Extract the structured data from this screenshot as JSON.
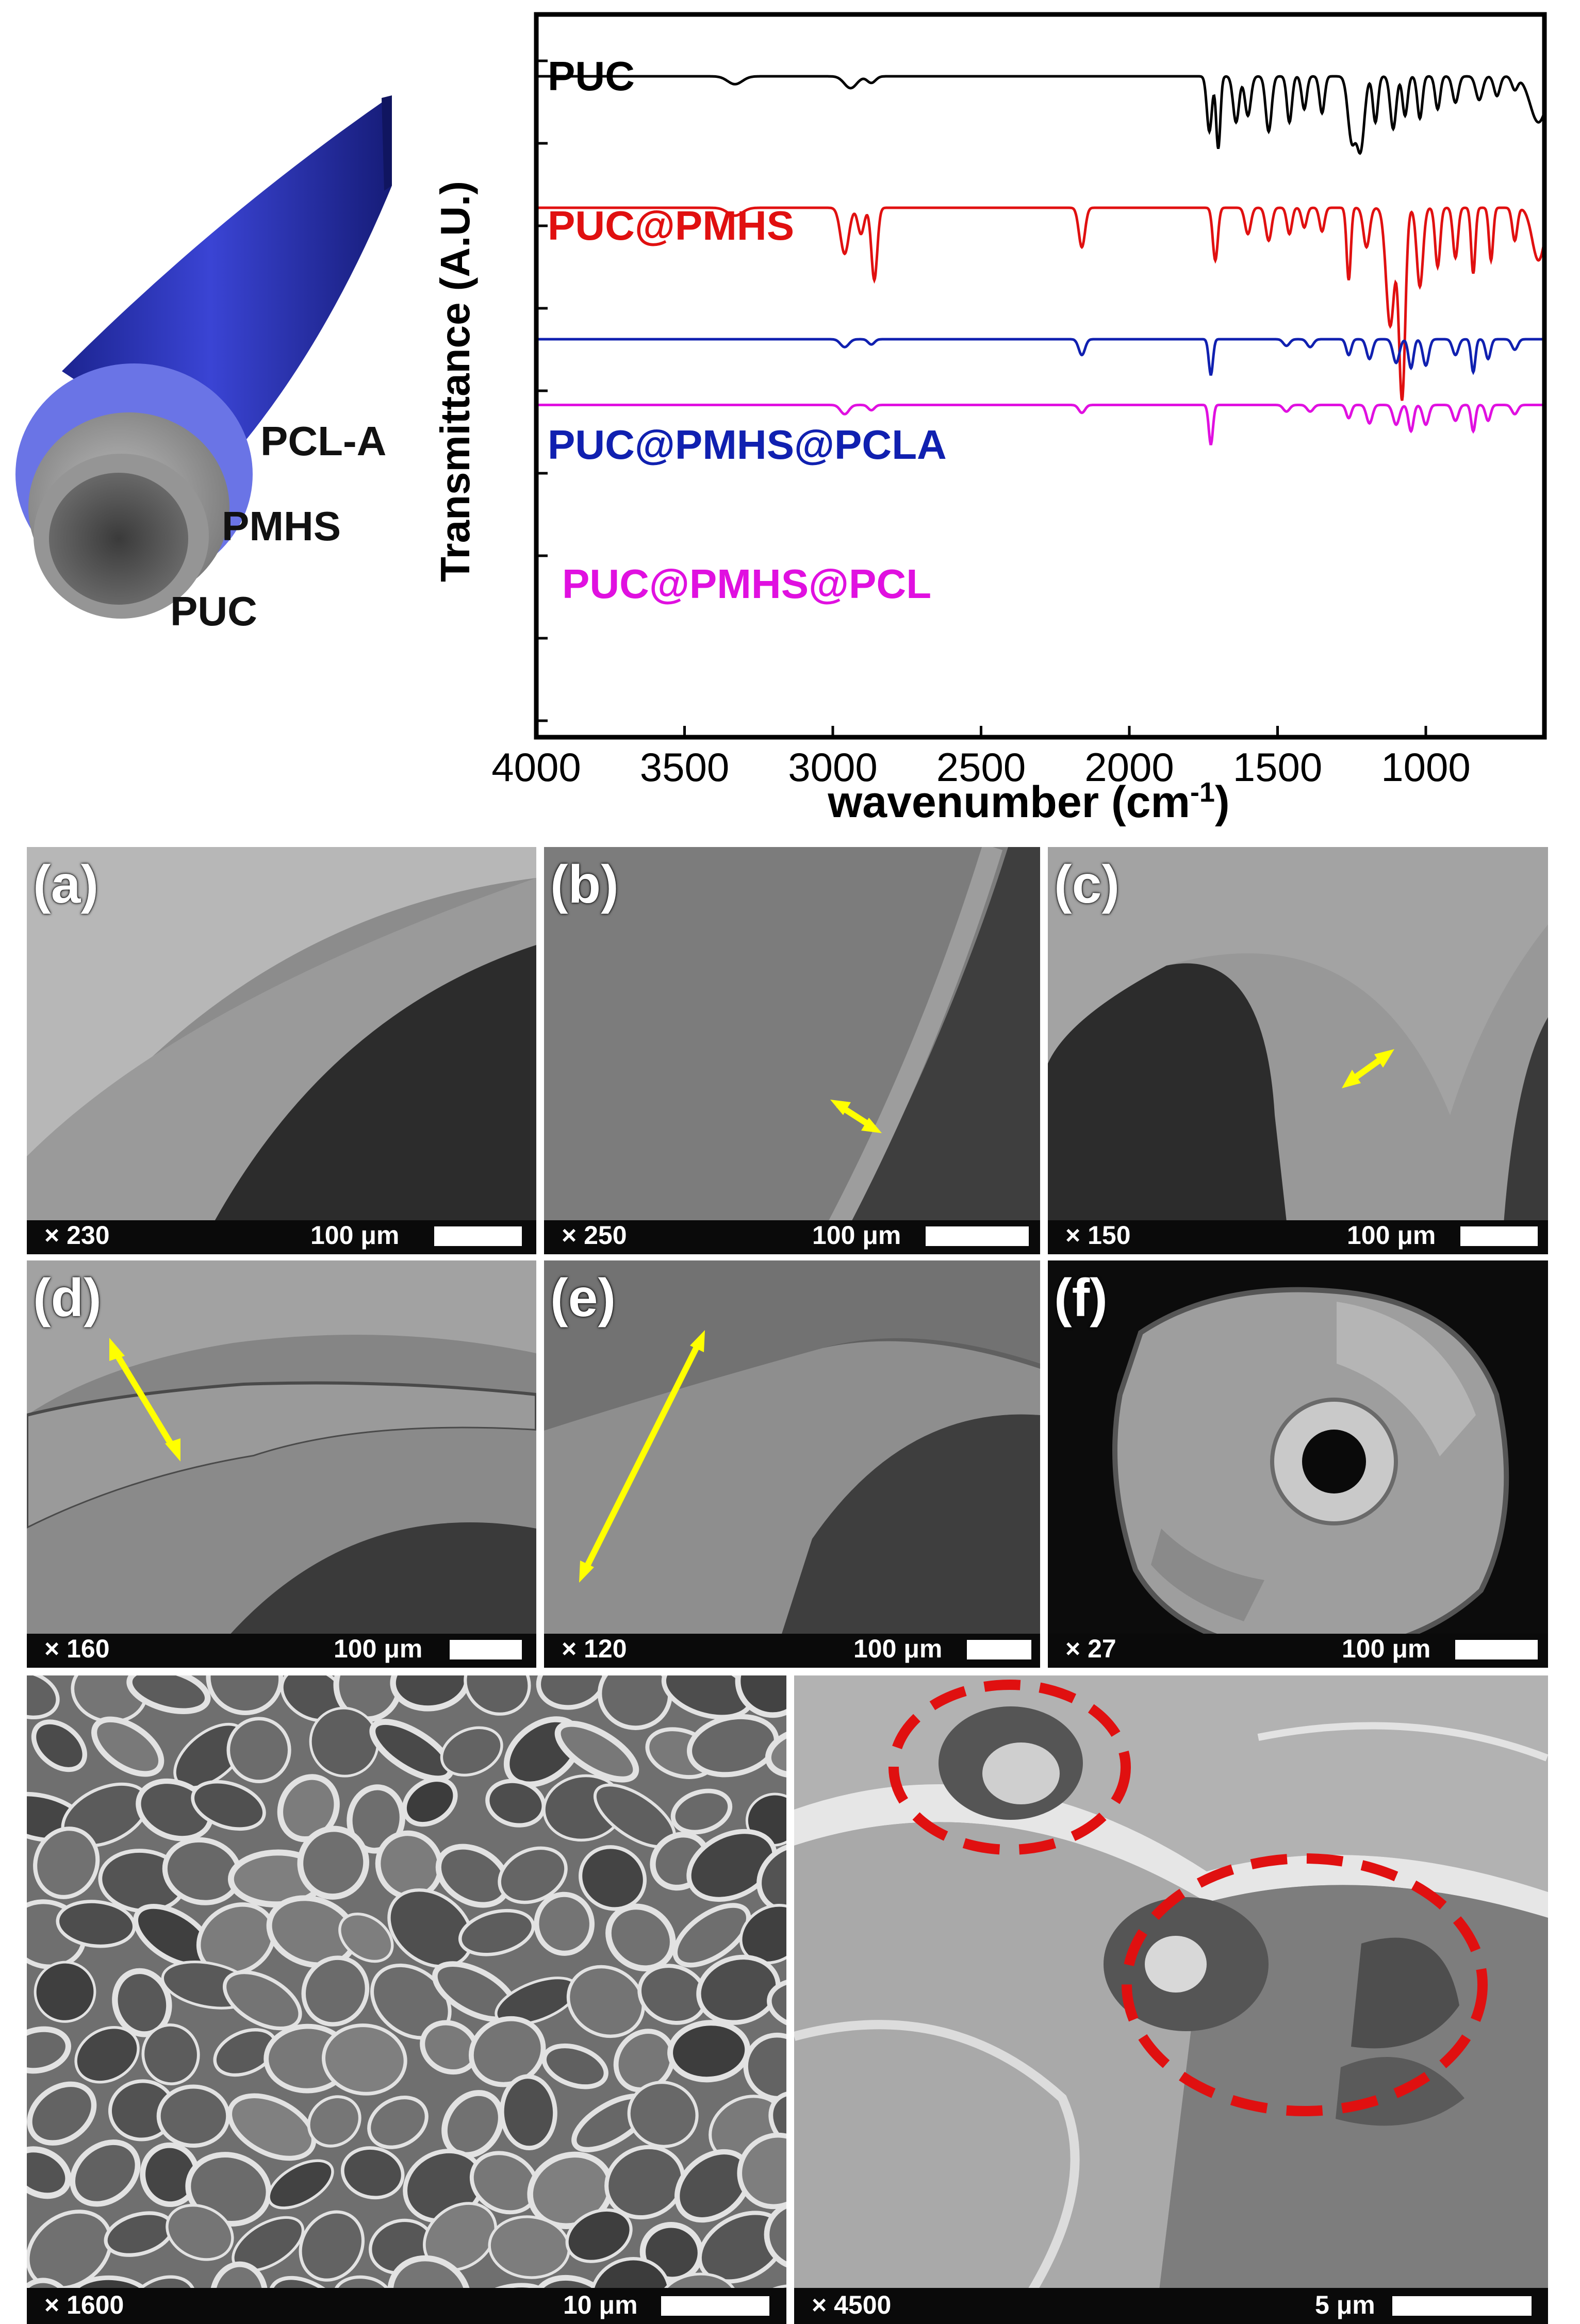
{
  "tube": {
    "labels": [
      "PCL-A",
      "PMHS",
      "PUC"
    ],
    "colors": {
      "outer": "#2a33b8",
      "middle": "#5b66e0",
      "inner": "#8f8f8f"
    }
  },
  "chart_data": {
    "type": "line",
    "xlabel": "wavenumber (cm",
    "xlabel_sup": "-1",
    "xlabel_end": ")",
    "ylabel": "Transmittance (A.U.)",
    "xlim": [
      4000,
      600
    ],
    "x_ticks": [
      "4000",
      "3500",
      "3000",
      "2500",
      "2000",
      "1500",
      "1000"
    ],
    "series": [
      {
        "name": "PUC",
        "color": "#000000",
        "baseline": 0.0,
        "bands": [
          [
            3330,
            0.06,
            35
          ],
          [
            2940,
            0.09,
            30
          ],
          [
            2870,
            0.05,
            20
          ],
          [
            1730,
            0.42,
            12
          ],
          [
            1700,
            0.55,
            10
          ],
          [
            1640,
            0.35,
            14
          ],
          [
            1600,
            0.3,
            14
          ],
          [
            1530,
            0.42,
            14
          ],
          [
            1460,
            0.35,
            12
          ],
          [
            1410,
            0.25,
            12
          ],
          [
            1350,
            0.28,
            12
          ],
          [
            1250,
            0.48,
            18
          ],
          [
            1220,
            0.55,
            18
          ],
          [
            1170,
            0.35,
            12
          ],
          [
            1110,
            0.4,
            14
          ],
          [
            1070,
            0.3,
            12
          ],
          [
            1020,
            0.32,
            12
          ],
          [
            960,
            0.25,
            12
          ],
          [
            900,
            0.2,
            14
          ],
          [
            820,
            0.18,
            16
          ],
          [
            760,
            0.15,
            14
          ],
          [
            700,
            0.1,
            14
          ],
          [
            620,
            0.35,
            40
          ]
        ]
      },
      {
        "name": "PUC@PMHS",
        "color": "#e01010",
        "baseline": 1.0,
        "bands": [
          [
            3330,
            0.06,
            35
          ],
          [
            2960,
            0.35,
            20
          ],
          [
            2905,
            0.2,
            15
          ],
          [
            2860,
            0.55,
            14
          ],
          [
            2160,
            0.3,
            15
          ],
          [
            1710,
            0.4,
            12
          ],
          [
            1600,
            0.2,
            14
          ],
          [
            1530,
            0.25,
            14
          ],
          [
            1460,
            0.2,
            12
          ],
          [
            1410,
            0.15,
            12
          ],
          [
            1350,
            0.18,
            12
          ],
          [
            1260,
            0.55,
            10
          ],
          [
            1200,
            0.3,
            15
          ],
          [
            1120,
            0.9,
            20
          ],
          [
            1080,
            1.45,
            15
          ],
          [
            1020,
            0.6,
            15
          ],
          [
            960,
            0.45,
            12
          ],
          [
            900,
            0.38,
            12
          ],
          [
            840,
            0.5,
            10
          ],
          [
            780,
            0.4,
            10
          ],
          [
            700,
            0.25,
            12
          ],
          [
            620,
            0.4,
            30
          ]
        ]
      },
      {
        "name": "PUC@PMHS@PCLA",
        "color": "#1020b0",
        "baseline": 2.0,
        "bands": [
          [
            2960,
            0.06,
            20
          ],
          [
            2870,
            0.04,
            15
          ],
          [
            2160,
            0.12,
            15
          ],
          [
            1725,
            0.27,
            10
          ],
          [
            1470,
            0.05,
            15
          ],
          [
            1390,
            0.06,
            15
          ],
          [
            1260,
            0.12,
            12
          ],
          [
            1190,
            0.15,
            14
          ],
          [
            1100,
            0.18,
            15
          ],
          [
            1050,
            0.22,
            12
          ],
          [
            1000,
            0.2,
            14
          ],
          [
            900,
            0.12,
            14
          ],
          [
            840,
            0.25,
            10
          ],
          [
            790,
            0.15,
            12
          ],
          [
            700,
            0.08,
            14
          ]
        ]
      },
      {
        "name": "PUC@PMHS@PCL",
        "color": "#e010e0",
        "baseline": 2.5,
        "bands": [
          [
            2960,
            0.07,
            20
          ],
          [
            2870,
            0.04,
            15
          ],
          [
            2160,
            0.06,
            15
          ],
          [
            1725,
            0.3,
            10
          ],
          [
            1470,
            0.05,
            15
          ],
          [
            1390,
            0.05,
            15
          ],
          [
            1260,
            0.1,
            12
          ],
          [
            1190,
            0.14,
            14
          ],
          [
            1100,
            0.15,
            15
          ],
          [
            1050,
            0.2,
            12
          ],
          [
            1000,
            0.15,
            14
          ],
          [
            900,
            0.12,
            14
          ],
          [
            840,
            0.2,
            10
          ],
          [
            790,
            0.12,
            12
          ],
          [
            700,
            0.07,
            14
          ]
        ]
      }
    ]
  },
  "sem_panels": [
    {
      "label": "(a)",
      "mag": "× 230",
      "scale": "100 μm"
    },
    {
      "label": "(b)",
      "mag": "× 250",
      "scale": "100 μm"
    },
    {
      "label": "(c)",
      "mag": "× 150",
      "scale": "100 μm"
    },
    {
      "label": "(d)",
      "mag": "× 160",
      "scale": "100 μm"
    },
    {
      "label": "(e)",
      "mag": "× 120",
      "scale": "100 μm"
    },
    {
      "label": "(f)",
      "mag": "× 27",
      "scale": "100 μm"
    }
  ],
  "sem_bottom": [
    {
      "mag": "× 1600",
      "scale": "10 μm"
    },
    {
      "mag": "× 4500",
      "scale": "5 μm"
    }
  ],
  "colors": {
    "arrow": "#ffff00",
    "circle": "#e01010"
  }
}
